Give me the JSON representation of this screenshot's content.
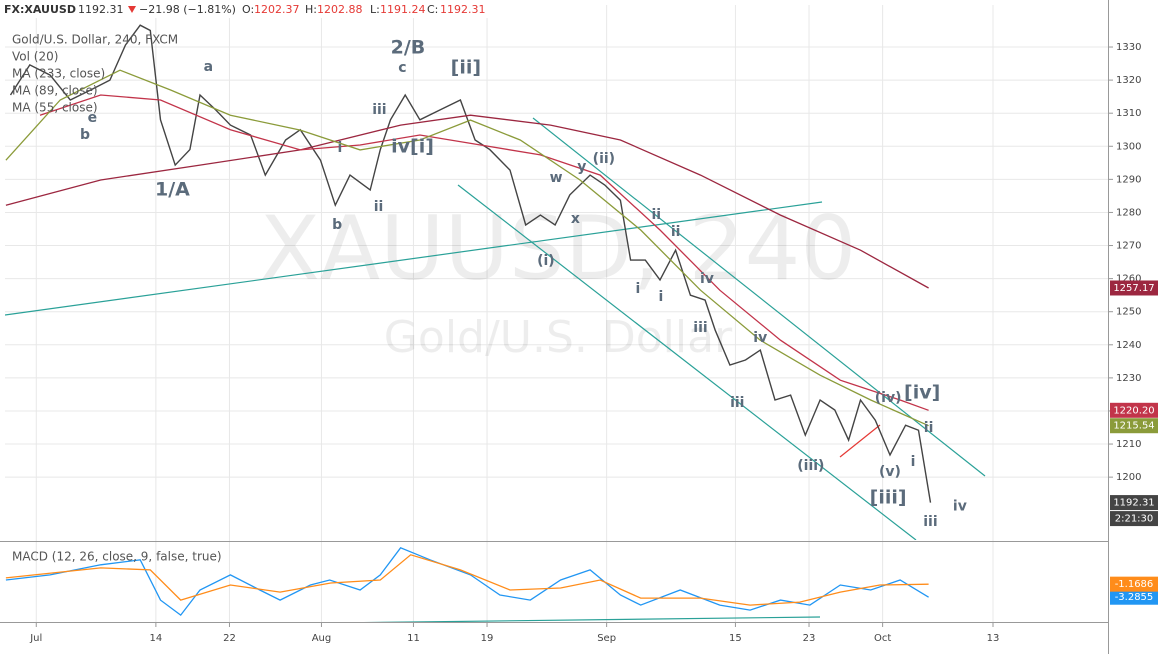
{
  "header": {
    "symbol": "FX:XAUUSD",
    "last": "1192.31",
    "change": "−21.98 (−1.81%)",
    "ohlc": [
      {
        "key": "O:",
        "value": "1202.37"
      },
      {
        "key": "H:",
        "value": "1202.88"
      },
      {
        "key": "L:",
        "value": "1191.24"
      },
      {
        "key": "C:",
        "value": "1192.31"
      }
    ],
    "countdown": "2:21:30"
  },
  "chart_data": [
    {
      "type": "line",
      "title": "Gold/U.S. Dollar, 240, FXCM",
      "volume_label": "Vol (20)",
      "watermark": [
        "XAUUSD, 240",
        "Gold/U.S. Dollar"
      ],
      "xlim": [
        -3.4,
        116.5
      ],
      "ylim": [
        1181,
        1342.7
      ],
      "yticks": [
        1200,
        1210,
        1220,
        1230,
        1240,
        1250,
        1260,
        1270,
        1280,
        1290,
        1300,
        1310,
        1320,
        1330
      ],
      "grid": true,
      "series": [
        {
          "name": "Gold/U.S. Dollar",
          "color": "#444444",
          "x": [
            -2.8,
            -0.7,
            1.5,
            3.7,
            5.9,
            8.0,
            9.7,
            11.3,
            12.4,
            13.5,
            15.1,
            16.7,
            17.8,
            19.5,
            21.1,
            23.3,
            24.9,
            27.1,
            28.7,
            30.9,
            32.5,
            34.1,
            36.3,
            37.4,
            38.5,
            40.1,
            41.7,
            43.9,
            46.1,
            47.7,
            49.3,
            51.5,
            53.2,
            54.8,
            56.4,
            58.0,
            60.2,
            61.8,
            63.5,
            64.6,
            66.2,
            67.8,
            69.5,
            71.1,
            72.7,
            73.8,
            75.4,
            77.1,
            78.7,
            80.3,
            82.0,
            83.6,
            85.2,
            86.8,
            88.3,
            89.6,
            91.2,
            92.8,
            94.5,
            95.9,
            97.2
          ],
          "values": [
            1315.5,
            1324.6,
            1321.5,
            1314,
            1317,
            1320,
            1330.6,
            1336.6,
            1335,
            1308,
            1294.3,
            1299,
            1315.5,
            1311,
            1306.4,
            1303.4,
            1291.3,
            1301.9,
            1305,
            1295.8,
            1282.2,
            1291.3,
            1286.8,
            1299,
            1308,
            1315.5,
            1308,
            1311,
            1314,
            1301.9,
            1299,
            1292.8,
            1276.2,
            1279.2,
            1276.2,
            1285.3,
            1291.3,
            1288.3,
            1283.7,
            1265.6,
            1265.6,
            1259.6,
            1268.6,
            1255,
            1253.5,
            1244.4,
            1233.9,
            1235.4,
            1238.4,
            1223.3,
            1224.8,
            1212.7,
            1223.3,
            1220.3,
            1211.2,
            1223.3,
            1217.2,
            1206.7,
            1215.7,
            1214.2,
            1192.31
          ]
        },
        {
          "name": "MA (233, close)",
          "color": "#9c2740",
          "x": [
            -3.3,
            7.0,
            17.8,
            28.7,
            39.6,
            47.2,
            55.9,
            63.5,
            72.2,
            80.9,
            89.6,
            97.0
          ],
          "values": [
            1282.2,
            1289.8,
            1294.3,
            1298.9,
            1306.4,
            1309.4,
            1306.4,
            1301.9,
            1291.3,
            1279.2,
            1268.6,
            1257.17
          ]
        },
        {
          "name": "MA (89, close)",
          "color": "#c2344a",
          "x": [
            0.4,
            7.0,
            13.5,
            21.1,
            28.7,
            35.2,
            41.7,
            48.3,
            54.8,
            61.3,
            67.8,
            74.3,
            80.9,
            87.4,
            93.9,
            97.0
          ],
          "values": [
            1309.4,
            1315.5,
            1314,
            1305,
            1298.9,
            1300.4,
            1303.4,
            1300.4,
            1297.4,
            1291.3,
            1274.7,
            1256.5,
            1241.4,
            1229.3,
            1223.3,
            1220.2
          ],
          "value_labels": [
            null,
            null,
            null,
            null,
            null,
            null,
            null,
            null,
            null,
            null,
            null,
            null,
            null,
            null,
            null,
            "1220.20"
          ]
        },
        {
          "name": "MA (55, close)",
          "color": "#8b9b3a",
          "x": [
            -3.3,
            2.6,
            9.1,
            14.6,
            21.1,
            28.7,
            35.2,
            41.7,
            47.2,
            52.6,
            59.1,
            65.7,
            72.2,
            78.7,
            85.2,
            90.7,
            97.0
          ],
          "values": [
            1295.8,
            1314,
            1323,
            1317,
            1309.4,
            1304.9,
            1298.9,
            1301.9,
            1307.9,
            1301.9,
            1289.8,
            1274.7,
            1256.5,
            1241.4,
            1230.8,
            1223.3,
            1215.54
          ]
        }
      ],
      "annotations": [
        {
          "text": "a",
          "x": 18.7,
          "y": 1324.0
        },
        {
          "text": "e",
          "x": 6.1,
          "y": 1308.5
        },
        {
          "text": "b",
          "x": 5.3,
          "y": 1303.4
        },
        {
          "text": "1/A",
          "x": 14.8,
          "y": 1286.8
        },
        {
          "text": "2/B",
          "x": 40.4,
          "y": 1329.7
        },
        {
          "text": "c",
          "x": 39.8,
          "y": 1323.7
        },
        {
          "text": "[ii]",
          "x": 46.7,
          "y": 1323.7
        },
        {
          "text": "iii",
          "x": 37.3,
          "y": 1311.0
        },
        {
          "text": "iv[i]",
          "x": 40.9,
          "y": 1299.8
        },
        {
          "text": "i",
          "x": 33.0,
          "y": 1299.5
        },
        {
          "text": "b",
          "x": 32.7,
          "y": 1276.2
        },
        {
          "text": "ii",
          "x": 37.2,
          "y": 1281.6
        },
        {
          "text": "w",
          "x": 56.5,
          "y": 1290.4
        },
        {
          "text": "y",
          "x": 59.3,
          "y": 1293.7
        },
        {
          "text": "(ii)",
          "x": 61.7,
          "y": 1296.1
        },
        {
          "text": "x",
          "x": 58.6,
          "y": 1278.0
        },
        {
          "text": "(i)",
          "x": 55.4,
          "y": 1265.3
        },
        {
          "text": "ii",
          "x": 67.4,
          "y": 1279.2
        },
        {
          "text": "ii",
          "x": 69.5,
          "y": 1274.1
        },
        {
          "text": "i",
          "x": 65.4,
          "y": 1256.8
        },
        {
          "text": "i",
          "x": 67.9,
          "y": 1254.4
        },
        {
          "text": "iv",
          "x": 72.9,
          "y": 1259.9
        },
        {
          "text": "iii",
          "x": 72.2,
          "y": 1245.1
        },
        {
          "text": "iv",
          "x": 78.7,
          "y": 1242.0
        },
        {
          "text": "iii",
          "x": 76.2,
          "y": 1222.4
        },
        {
          "text": "(iii)",
          "x": 84.2,
          "y": 1203.3
        },
        {
          "text": "(iv)",
          "x": 92.6,
          "y": 1223.9
        },
        {
          "text": "[iv]",
          "x": 96.3,
          "y": 1225.4
        },
        {
          "text": "(v)",
          "x": 92.8,
          "y": 1201.5
        },
        {
          "text": "[iii]",
          "x": 92.6,
          "y": 1193.7
        },
        {
          "text": "i",
          "x": 95.3,
          "y": 1204.5
        },
        {
          "text": "ii",
          "x": 97.0,
          "y": 1214.8
        },
        {
          "text": "iii",
          "x": 97.2,
          "y": 1186.4
        },
        {
          "text": "iv",
          "x": 100.4,
          "y": 1191.2
        }
      ]
    },
    {
      "type": "line",
      "title": "MACD (12, 26, close, 9, false, true)",
      "xlim": [
        -3.4,
        116.5
      ],
      "ylim": [
        -7.3,
        5.5
      ],
      "xticks": [
        {
          "value": 0,
          "label": "Jul"
        },
        {
          "value": 13,
          "label": "14"
        },
        {
          "value": 21,
          "label": "22"
        },
        {
          "value": 31,
          "label": "Aug"
        },
        {
          "value": 41,
          "label": "11"
        },
        {
          "value": 49,
          "label": "19"
        },
        {
          "value": 62,
          "label": "Sep"
        },
        {
          "value": 76,
          "label": "15"
        },
        {
          "value": 84,
          "label": "23"
        },
        {
          "value": 92,
          "label": "Oct"
        },
        {
          "value": 104,
          "label": "13"
        }
      ],
      "series": [
        {
          "name": "MACD",
          "color": "#2196f3",
          "x": [
            -3.3,
            1.5,
            7.0,
            11.3,
            13.5,
            15.7,
            17.8,
            21.1,
            24.3,
            26.5,
            29.8,
            31.9,
            35.2,
            37.4,
            39.6,
            42.8,
            47.2,
            50.4,
            53.7,
            57.0,
            60.2,
            63.5,
            65.7,
            70.0,
            74.3,
            77.6,
            80.9,
            84.1,
            87.4,
            90.7,
            93.9,
            97.0
          ],
          "values": [
            -0.49,
            0.33,
            1.96,
            2.77,
            -3.75,
            -6.19,
            -2.12,
            0.33,
            -2.12,
            -3.75,
            -1.3,
            -0.49,
            -2.12,
            0.33,
            4.73,
            2.77,
            0.33,
            -2.93,
            -3.75,
            -0.49,
            1.14,
            -2.93,
            -4.56,
            -2.12,
            -4.56,
            -5.38,
            -3.75,
            -4.56,
            -1.3,
            -2.12,
            -0.49,
            -3.2855
          ]
        },
        {
          "name": "Signal",
          "color": "#ff8c1a",
          "x": [
            -3.3,
            7.0,
            12.4,
            15.7,
            21.1,
            26.5,
            32.0,
            37.4,
            40.7,
            46.1,
            51.5,
            57.0,
            61.3,
            65.7,
            72.2,
            77.6,
            83.0,
            87.4,
            91.7,
            97.0
          ],
          "values": [
            -0.16,
            1.47,
            1.14,
            -3.75,
            -1.3,
            -2.45,
            -0.98,
            -0.49,
            3.59,
            1.14,
            -2.12,
            -1.79,
            -0.49,
            -3.42,
            -3.42,
            -4.56,
            -4.08,
            -2.45,
            -1.3,
            -1.1686
          ]
        }
      ]
    }
  ]
}
